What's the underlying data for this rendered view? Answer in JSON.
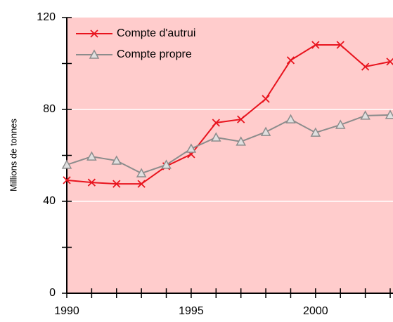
{
  "chart_data": {
    "type": "line",
    "y_label": "Millions de tonnes",
    "x": [
      1990,
      1991,
      1992,
      1993,
      1994,
      1995,
      1996,
      1997,
      1998,
      1999,
      2000,
      2001,
      2002,
      2003
    ],
    "series": [
      {
        "name": "Compte d'autrui",
        "color": "#e8141e",
        "marker": "x",
        "values": [
          49.2,
          48.2,
          47.6,
          47.6,
          55.3,
          60.5,
          74.2,
          75.7,
          84.6,
          101.4,
          108.1,
          108.1,
          98.6,
          100.8
        ]
      },
      {
        "name": "Compte propre",
        "color": "#8c8c8c",
        "marker": "triangle",
        "values": [
          55.9,
          59.5,
          57.7,
          52.2,
          55.9,
          62.9,
          67.8,
          66.0,
          70.2,
          75.7,
          69.9,
          73.3,
          77.3,
          77.6
        ]
      }
    ],
    "xlim": [
      1990,
      2003
    ],
    "xticks": [
      1990,
      1995,
      2000
    ],
    "xminorticks": [
      1991,
      1992,
      1993,
      1994,
      1996,
      1997,
      1998,
      1999,
      2001,
      2002,
      2003
    ],
    "ylim": [
      0,
      120
    ],
    "yticks": [
      0,
      40,
      80,
      120
    ],
    "yminorticks": [
      20,
      60,
      100
    ],
    "grid": true,
    "background": "#ffcccc",
    "legend": "upper left"
  }
}
